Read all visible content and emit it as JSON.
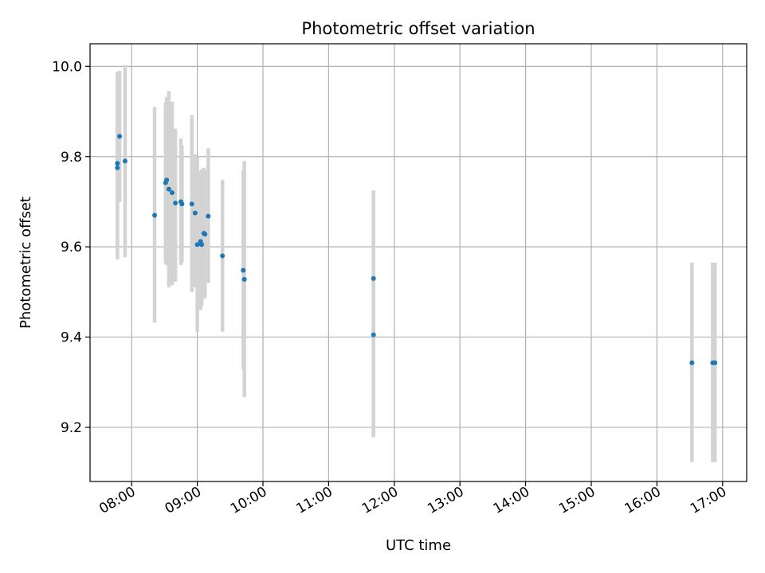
{
  "chart_data": {
    "type": "scatter",
    "title": "Photometric offset variation",
    "xlabel": "UTC time",
    "ylabel": "Photometric offset",
    "x_tick_labels": [
      "08:00",
      "09:00",
      "10:00",
      "11:00",
      "12:00",
      "13:00",
      "14:00",
      "15:00",
      "16:00",
      "17:00"
    ],
    "y_tick_labels": [
      "9.2",
      "9.4",
      "9.6",
      "9.8",
      "10.0"
    ],
    "xlim": [
      "07:22",
      "17:22"
    ],
    "ylim": [
      9.08,
      10.05
    ],
    "grid": true,
    "colors": {
      "point": "#1f77b4",
      "errorbar": "#d3d3d3",
      "grid": "#b0b0b0",
      "axis": "#000000"
    },
    "points": [
      {
        "x": "07:47",
        "y": 9.785,
        "ylo": 9.572,
        "yhi": 9.988
      },
      {
        "x": "07:47",
        "y": 9.775,
        "ylo": 9.577,
        "yhi": 9.985
      },
      {
        "x": "07:49",
        "y": 9.845,
        "ylo": 9.7,
        "yhi": 9.99
      },
      {
        "x": "07:54",
        "y": 9.79,
        "ylo": 9.577,
        "yhi": 10.003
      },
      {
        "x": "08:21",
        "y": 9.67,
        "ylo": 9.432,
        "yhi": 9.91
      },
      {
        "x": "08:31",
        "y": 9.742,
        "ylo": 9.563,
        "yhi": 9.92
      },
      {
        "x": "08:32",
        "y": 9.748,
        "ylo": 9.56,
        "yhi": 9.932
      },
      {
        "x": "08:34",
        "y": 9.728,
        "ylo": 9.51,
        "yhi": 9.945
      },
      {
        "x": "08:37",
        "y": 9.72,
        "ylo": 9.515,
        "yhi": 9.922
      },
      {
        "x": "08:40",
        "y": 9.697,
        "ylo": 9.523,
        "yhi": 9.862
      },
      {
        "x": "08:45",
        "y": 9.7,
        "ylo": 9.56,
        "yhi": 9.84
      },
      {
        "x": "08:46",
        "y": 9.695,
        "ylo": 9.565,
        "yhi": 9.825
      },
      {
        "x": "08:55",
        "y": 9.695,
        "ylo": 9.5,
        "yhi": 9.892
      },
      {
        "x": "08:58",
        "y": 9.675,
        "ylo": 9.51,
        "yhi": 9.805
      },
      {
        "x": "09:00",
        "y": 9.605,
        "ylo": 9.412,
        "yhi": 9.8
      },
      {
        "x": "09:03",
        "y": 9.612,
        "ylo": 9.46,
        "yhi": 9.768
      },
      {
        "x": "09:04",
        "y": 9.605,
        "ylo": 9.47,
        "yhi": 9.772
      },
      {
        "x": "09:06",
        "y": 9.63,
        "ylo": 9.485,
        "yhi": 9.775
      },
      {
        "x": "09:07",
        "y": 9.628,
        "ylo": 9.487,
        "yhi": 9.77
      },
      {
        "x": "09:10",
        "y": 9.668,
        "ylo": 9.52,
        "yhi": 9.818
      },
      {
        "x": "09:23",
        "y": 9.58,
        "ylo": 9.412,
        "yhi": 9.748
      },
      {
        "x": "09:42",
        "y": 9.548,
        "ylo": 9.328,
        "yhi": 9.77
      },
      {
        "x": "09:43",
        "y": 9.528,
        "ylo": 9.267,
        "yhi": 9.79
      },
      {
        "x": "11:41",
        "y": 9.53,
        "ylo": 9.178,
        "yhi": 9.725
      },
      {
        "x": "11:41",
        "y": 9.405,
        "ylo": 9.338,
        "yhi": 9.47
      },
      {
        "x": "16:32",
        "y": 9.343,
        "ylo": 9.123,
        "yhi": 9.565
      },
      {
        "x": "16:51",
        "y": 9.343,
        "ylo": 9.123,
        "yhi": 9.565
      },
      {
        "x": "16:53",
        "y": 9.343,
        "ylo": 9.123,
        "yhi": 9.565
      }
    ]
  }
}
